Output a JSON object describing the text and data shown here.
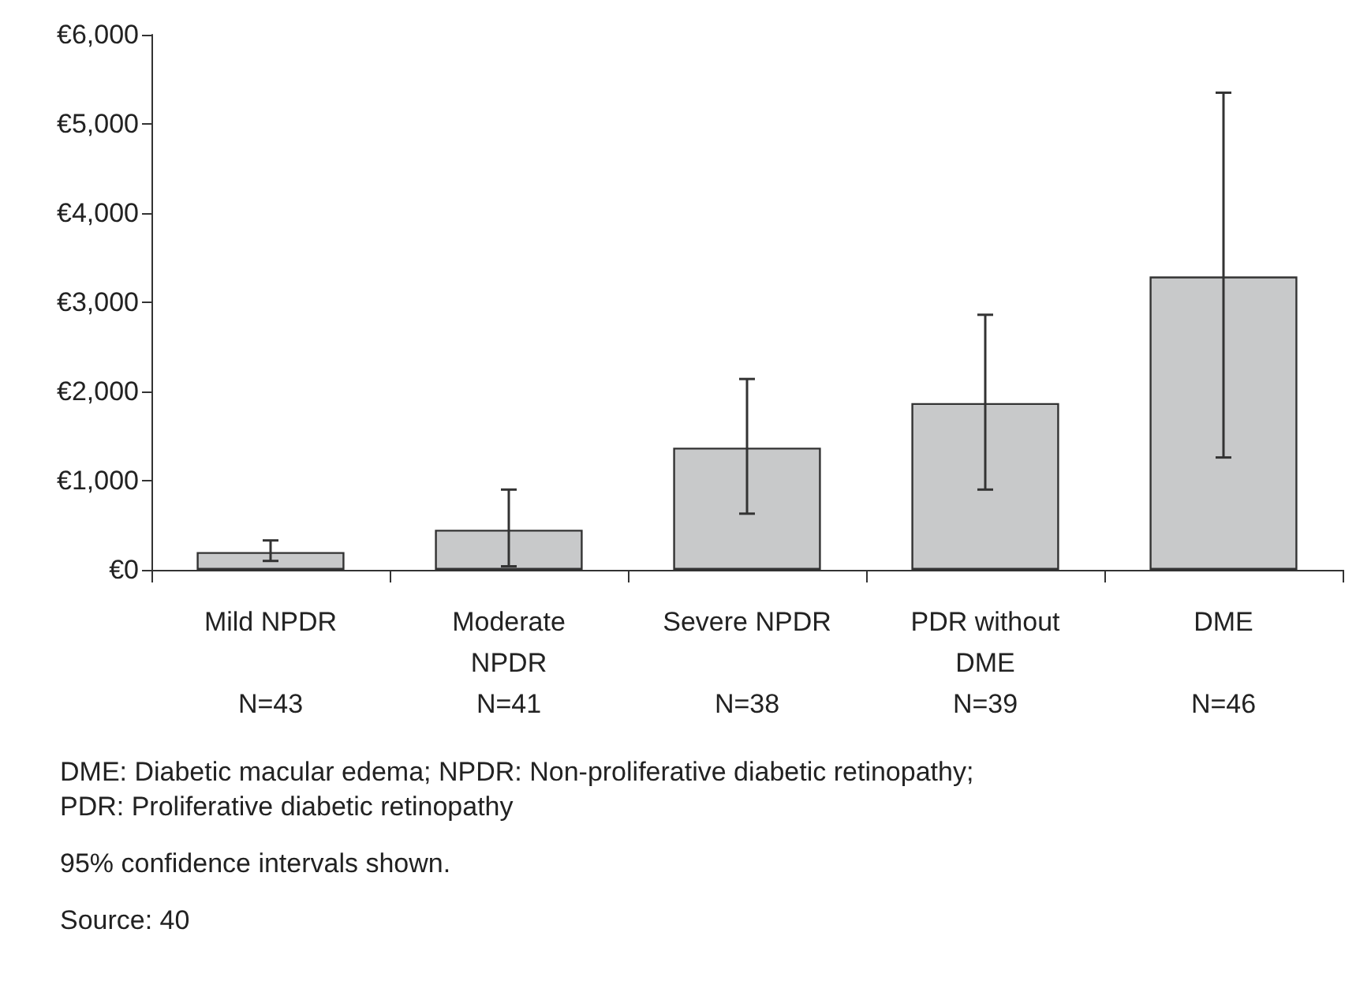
{
  "chart_data": {
    "type": "bar",
    "categories": [
      "Mild NPDR\n\nN=43",
      "Moderate\nNPDR\nN=41",
      "Severe NPDR\n\nN=38",
      "PDR without\nDME\nN=39",
      "DME\n\nN=46"
    ],
    "values": [
      200,
      450,
      1370,
      1870,
      3290
    ],
    "errors": [
      [
        100,
        330
      ],
      [
        40,
        900
      ],
      [
        630,
        2140
      ],
      [
        900,
        2860
      ],
      [
        1260,
        5350
      ]
    ],
    "color": "#c8c9ca",
    "ylim": [
      0,
      6000
    ],
    "yticks": [
      {
        "value": 0,
        "label": "€0"
      },
      {
        "value": 1000,
        "label": "€1,000"
      },
      {
        "value": 2000,
        "label": "€2,000"
      },
      {
        "value": 3000,
        "label": "€3,000"
      },
      {
        "value": 4000,
        "label": "€4,000"
      },
      {
        "value": 5000,
        "label": "€5,000"
      },
      {
        "value": 6000,
        "label": "€6,000"
      }
    ],
    "grid": false,
    "annotations": [
      "DME: Diabetic macular edema; NPDR: Non-proliferative diabetic retinopathy;\nPDR: Proliferative diabetic retinopathy",
      "95% confidence intervals shown.",
      "Source: 40"
    ]
  }
}
